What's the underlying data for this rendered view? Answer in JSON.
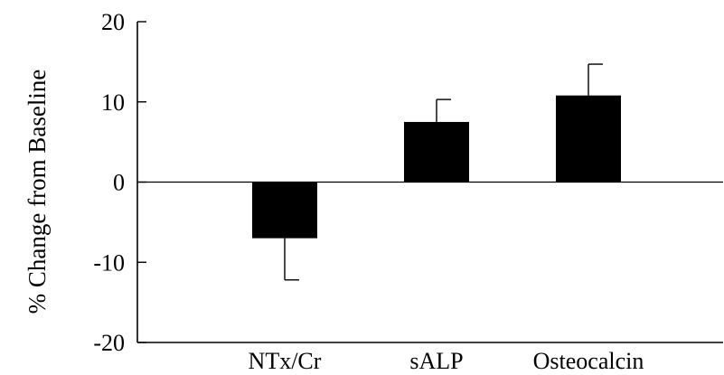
{
  "chart_data": {
    "type": "bar",
    "title": "",
    "xlabel": "",
    "ylabel": "% Change from Baseline",
    "categories": [
      "NTx/Cr",
      "sALP",
      "Osteocalcin"
    ],
    "values": [
      -7,
      7.5,
      10.8
    ],
    "error_bars": [
      5.2,
      2.8,
      3.9
    ],
    "ylim": [
      -20,
      20
    ],
    "yticks": [
      -20,
      -10,
      0,
      10,
      20
    ],
    "ytick_labels": [
      "-20",
      "-10",
      "0",
      "10",
      "20"
    ],
    "grid": false,
    "legend": "none",
    "bar_color": "#000000",
    "axis_color": "#000000"
  }
}
